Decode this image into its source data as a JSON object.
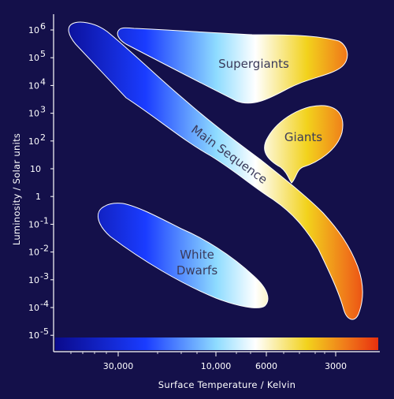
{
  "diagram": {
    "x_axis_label": "Surface Temperature / Kelvin",
    "y_axis_label": "Luminosity / Solar units",
    "y_ticks": [
      {
        "base": "10",
        "exp": "6"
      },
      {
        "base": "10",
        "exp": "5"
      },
      {
        "base": "10",
        "exp": "4"
      },
      {
        "base": "10",
        "exp": "3"
      },
      {
        "base": "10",
        "exp": "2"
      },
      {
        "base": "10",
        "exp": ""
      },
      {
        "base": "1",
        "exp": ""
      },
      {
        "base": "10",
        "exp": "-1"
      },
      {
        "base": "10",
        "exp": "-2"
      },
      {
        "base": "10",
        "exp": "-3"
      },
      {
        "base": "10",
        "exp": "-4"
      },
      {
        "base": "10",
        "exp": "-5"
      }
    ],
    "x_ticks": [
      "30,000",
      "10,000",
      "6000",
      "3000"
    ],
    "regions": {
      "supergiants": "Supergiants",
      "giants": "Giants",
      "main_sequence": "Main Sequence",
      "white_dwarfs_line1": "White",
      "white_dwarfs_line2": "Dwarfs"
    },
    "colors": {
      "background": "#14104a",
      "hot": "#0a0a8c",
      "blue": "#1a3cff",
      "cyan": "#8fdcff",
      "white": "#ffffff",
      "yellow": "#f2d21c",
      "orange": "#f07a1a",
      "red": "#e8300e"
    }
  }
}
